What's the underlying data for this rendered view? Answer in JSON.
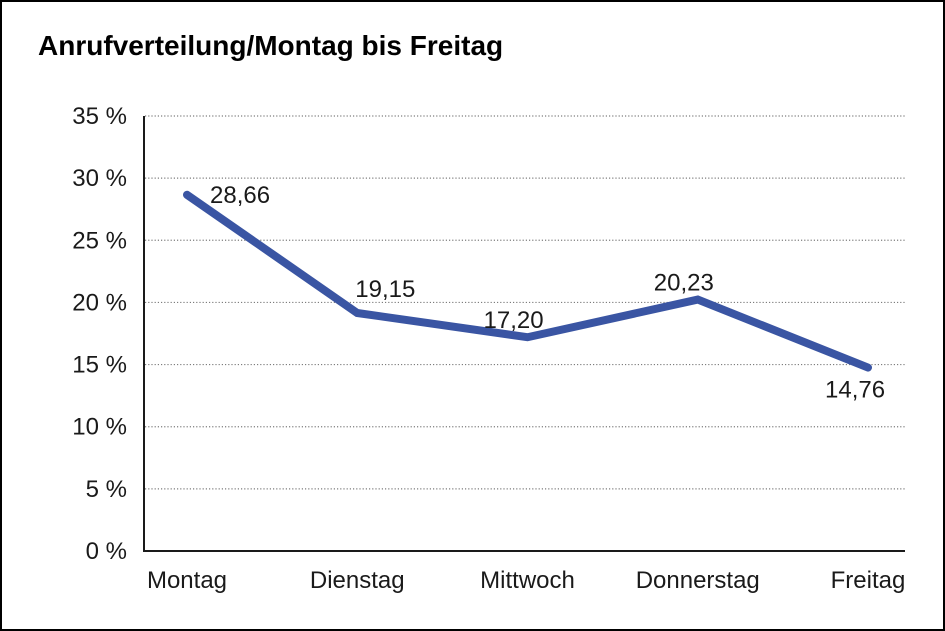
{
  "title": "Anrufverteilung/Montag bis Freitag",
  "chart_data": {
    "type": "line",
    "title": "Anrufverteilung/Montag bis Freitag",
    "categories": [
      "Montag",
      "Dienstag",
      "Mittwoch",
      "Donnerstag",
      "Freitag"
    ],
    "series": [
      {
        "name": "Anrufverteilung",
        "values": [
          28.66,
          19.15,
          17.2,
          20.23,
          14.76
        ],
        "point_labels": [
          "28,66",
          "19,15",
          "17,20",
          "20,23",
          "14,76"
        ]
      }
    ],
    "xlabel": "",
    "ylabel": "",
    "ylim": [
      0,
      35
    ],
    "ytick_step": 5,
    "ytick_labels": [
      "0 %",
      "5 %",
      "10 %",
      "15 %",
      "20 %",
      "25 %",
      "30 %",
      "35 %"
    ],
    "grid": "horizontal dotted gridlines, none at 0%",
    "legend": "none"
  },
  "colors": {
    "line": "#3A55A3",
    "axis": "#1a1a1a",
    "grid": "#7d7d7d",
    "text": "#1a1a1a",
    "background": "#ffffff",
    "border": "#000000"
  }
}
